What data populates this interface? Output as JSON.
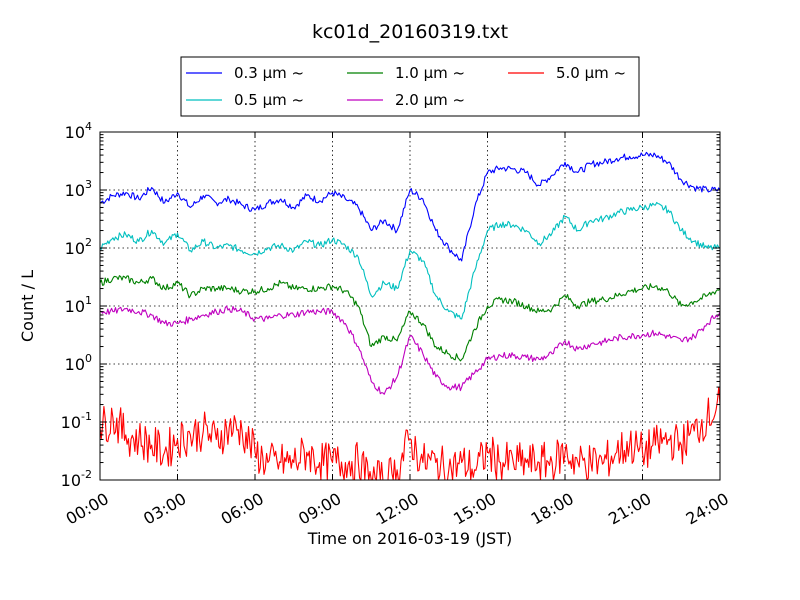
{
  "chart_data": {
    "type": "line",
    "title": "kc01d_20160319.txt",
    "xlabel": "Time on 2016-03-19 (JST)",
    "ylabel": "Count / L",
    "y_scale": "log",
    "ylim": [
      0.01,
      10000
    ],
    "xlim": [
      "00:00",
      "24:00"
    ],
    "x_ticks": [
      "00:00",
      "03:00",
      "06:00",
      "09:00",
      "12:00",
      "15:00",
      "18:00",
      "21:00",
      "24:00"
    ],
    "y_ticks": [
      {
        "base": "10",
        "exp": "-2"
      },
      {
        "base": "10",
        "exp": "-1"
      },
      {
        "base": "10",
        "exp": "0"
      },
      {
        "base": "10",
        "exp": "1"
      },
      {
        "base": "10",
        "exp": "2"
      },
      {
        "base": "10",
        "exp": "3"
      },
      {
        "base": "10",
        "exp": "4"
      }
    ],
    "grid": true,
    "legend_placement": "top (above plot)",
    "series": [
      {
        "name": "0.3 μm ~",
        "color": "#0000ff",
        "x": [
          "00:00",
          "00:30",
          "01:00",
          "01:30",
          "02:00",
          "02:30",
          "03:00",
          "03:30",
          "04:00",
          "04:30",
          "05:00",
          "05:30",
          "06:00",
          "06:30",
          "07:00",
          "07:30",
          "08:00",
          "08:30",
          "09:00",
          "09:30",
          "10:00",
          "10:30",
          "11:00",
          "11:30",
          "12:00",
          "12:30",
          "13:00",
          "13:30",
          "14:00",
          "14:30",
          "15:00",
          "15:30",
          "16:00",
          "16:30",
          "17:00",
          "17:30",
          "18:00",
          "18:30",
          "19:00",
          "19:30",
          "20:00",
          "20:30",
          "21:00",
          "21:30",
          "22:00",
          "22:30",
          "23:00",
          "23:30",
          "24:00"
        ],
        "y": [
          600,
          800,
          900,
          700,
          1100,
          600,
          900,
          500,
          800,
          600,
          700,
          550,
          450,
          600,
          700,
          500,
          800,
          650,
          900,
          700,
          500,
          200,
          300,
          200,
          1000,
          700,
          200,
          100,
          60,
          500,
          2000,
          2400,
          2300,
          2000,
          1200,
          1800,
          3000,
          2000,
          2800,
          3000,
          3500,
          3800,
          4000,
          4000,
          3000,
          1500,
          1100,
          1000,
          1000
        ]
      },
      {
        "name": "0.5 μm ~",
        "color": "#00bfbf",
        "x": [
          "00:00",
          "00:30",
          "01:00",
          "01:30",
          "02:00",
          "02:30",
          "03:00",
          "03:30",
          "04:00",
          "04:30",
          "05:00",
          "05:30",
          "06:00",
          "06:30",
          "07:00",
          "07:30",
          "08:00",
          "08:30",
          "09:00",
          "09:30",
          "10:00",
          "10:30",
          "11:00",
          "11:30",
          "12:00",
          "12:30",
          "13:00",
          "13:30",
          "14:00",
          "14:30",
          "15:00",
          "15:30",
          "16:00",
          "16:30",
          "17:00",
          "17:30",
          "18:00",
          "18:30",
          "19:00",
          "19:30",
          "20:00",
          "20:30",
          "21:00",
          "21:30",
          "22:00",
          "22:30",
          "23:00",
          "23:30",
          "24:00"
        ],
        "y": [
          100,
          150,
          170,
          130,
          200,
          120,
          180,
          90,
          130,
          100,
          110,
          90,
          80,
          100,
          110,
          90,
          130,
          110,
          140,
          110,
          70,
          15,
          25,
          20,
          90,
          60,
          15,
          8,
          6,
          40,
          200,
          260,
          250,
          200,
          120,
          180,
          350,
          200,
          300,
          320,
          400,
          450,
          500,
          550,
          450,
          200,
          130,
          100,
          100
        ]
      },
      {
        "name": "1.0 μm ~",
        "color": "#008000",
        "x": [
          "00:00",
          "00:30",
          "01:00",
          "01:30",
          "02:00",
          "02:30",
          "03:00",
          "03:30",
          "04:00",
          "04:30",
          "05:00",
          "05:30",
          "06:00",
          "06:30",
          "07:00",
          "07:30",
          "08:00",
          "08:30",
          "09:00",
          "09:30",
          "10:00",
          "10:30",
          "11:00",
          "11:30",
          "12:00",
          "12:30",
          "13:00",
          "13:30",
          "14:00",
          "14:30",
          "15:00",
          "15:30",
          "16:00",
          "16:30",
          "17:00",
          "17:30",
          "18:00",
          "18:30",
          "19:00",
          "19:30",
          "20:00",
          "20:30",
          "21:00",
          "21:30",
          "22:00",
          "22:30",
          "23:00",
          "23:30",
          "24:00"
        ],
        "y": [
          25,
          30,
          30,
          25,
          30,
          20,
          25,
          15,
          20,
          20,
          20,
          18,
          18,
          20,
          25,
          20,
          20,
          20,
          22,
          18,
          10,
          2,
          3,
          2.5,
          8,
          5,
          2,
          1.5,
          1.2,
          4,
          10,
          13,
          12,
          10,
          8,
          9,
          15,
          10,
          12,
          13,
          15,
          18,
          20,
          22,
          18,
          10,
          12,
          15,
          20
        ]
      },
      {
        "name": "2.0 μm ~",
        "color": "#bf00bf",
        "x": [
          "00:00",
          "00:30",
          "01:00",
          "01:30",
          "02:00",
          "02:30",
          "03:00",
          "03:30",
          "04:00",
          "04:30",
          "05:00",
          "05:30",
          "06:00",
          "06:30",
          "07:00",
          "07:30",
          "08:00",
          "08:30",
          "09:00",
          "09:30",
          "10:00",
          "10:30",
          "11:00",
          "11:30",
          "12:00",
          "12:30",
          "13:00",
          "13:30",
          "14:00",
          "14:30",
          "15:00",
          "15:30",
          "16:00",
          "16:30",
          "17:00",
          "17:30",
          "18:00",
          "18:30",
          "19:00",
          "19:30",
          "20:00",
          "20:30",
          "21:00",
          "21:30",
          "22:00",
          "22:30",
          "23:00",
          "23:30",
          "24:00"
        ],
        "y": [
          8,
          8,
          9,
          8,
          7,
          5,
          5,
          6,
          7,
          8,
          9,
          8,
          6,
          6,
          7,
          7,
          8,
          8,
          8,
          5,
          2,
          0.5,
          0.3,
          0.6,
          3,
          1.5,
          0.6,
          0.4,
          0.4,
          0.7,
          1.2,
          1.4,
          1.4,
          1.3,
          1.2,
          1.5,
          2.5,
          1.8,
          2.2,
          2.4,
          2.8,
          3,
          3.2,
          3.4,
          3,
          2.5,
          3,
          5,
          8
        ]
      },
      {
        "name": "5.0 μm ~",
        "color": "#ff0000",
        "x": [
          "00:00",
          "00:30",
          "01:00",
          "01:30",
          "02:00",
          "02:30",
          "03:00",
          "03:30",
          "04:00",
          "04:30",
          "05:00",
          "05:30",
          "06:00",
          "06:30",
          "07:00",
          "07:30",
          "08:00",
          "08:30",
          "09:00",
          "09:30",
          "10:00",
          "10:30",
          "11:00",
          "11:30",
          "12:00",
          "12:30",
          "13:00",
          "13:30",
          "14:00",
          "14:30",
          "15:00",
          "15:30",
          "16:00",
          "16:30",
          "17:00",
          "17:30",
          "18:00",
          "18:30",
          "19:00",
          "19:30",
          "20:00",
          "20:30",
          "21:00",
          "21:30",
          "22:00",
          "22:30",
          "23:00",
          "23:30",
          "24:00"
        ],
        "y": [
          0.08,
          0.12,
          0.06,
          0.05,
          0.04,
          0.03,
          0.05,
          0.06,
          0.07,
          0.05,
          0.08,
          0.07,
          0.03,
          0.02,
          0.02,
          0.02,
          0.03,
          0.02,
          0.02,
          0.02,
          0.02,
          0.01,
          0.01,
          0.015,
          0.05,
          0.02,
          0.02,
          0.015,
          0.02,
          0.015,
          0.03,
          0.02,
          0.02,
          0.02,
          0.02,
          0.02,
          0.03,
          0.02,
          0.02,
          0.02,
          0.03,
          0.04,
          0.03,
          0.04,
          0.05,
          0.04,
          0.07,
          0.12,
          0.2
        ]
      }
    ]
  }
}
